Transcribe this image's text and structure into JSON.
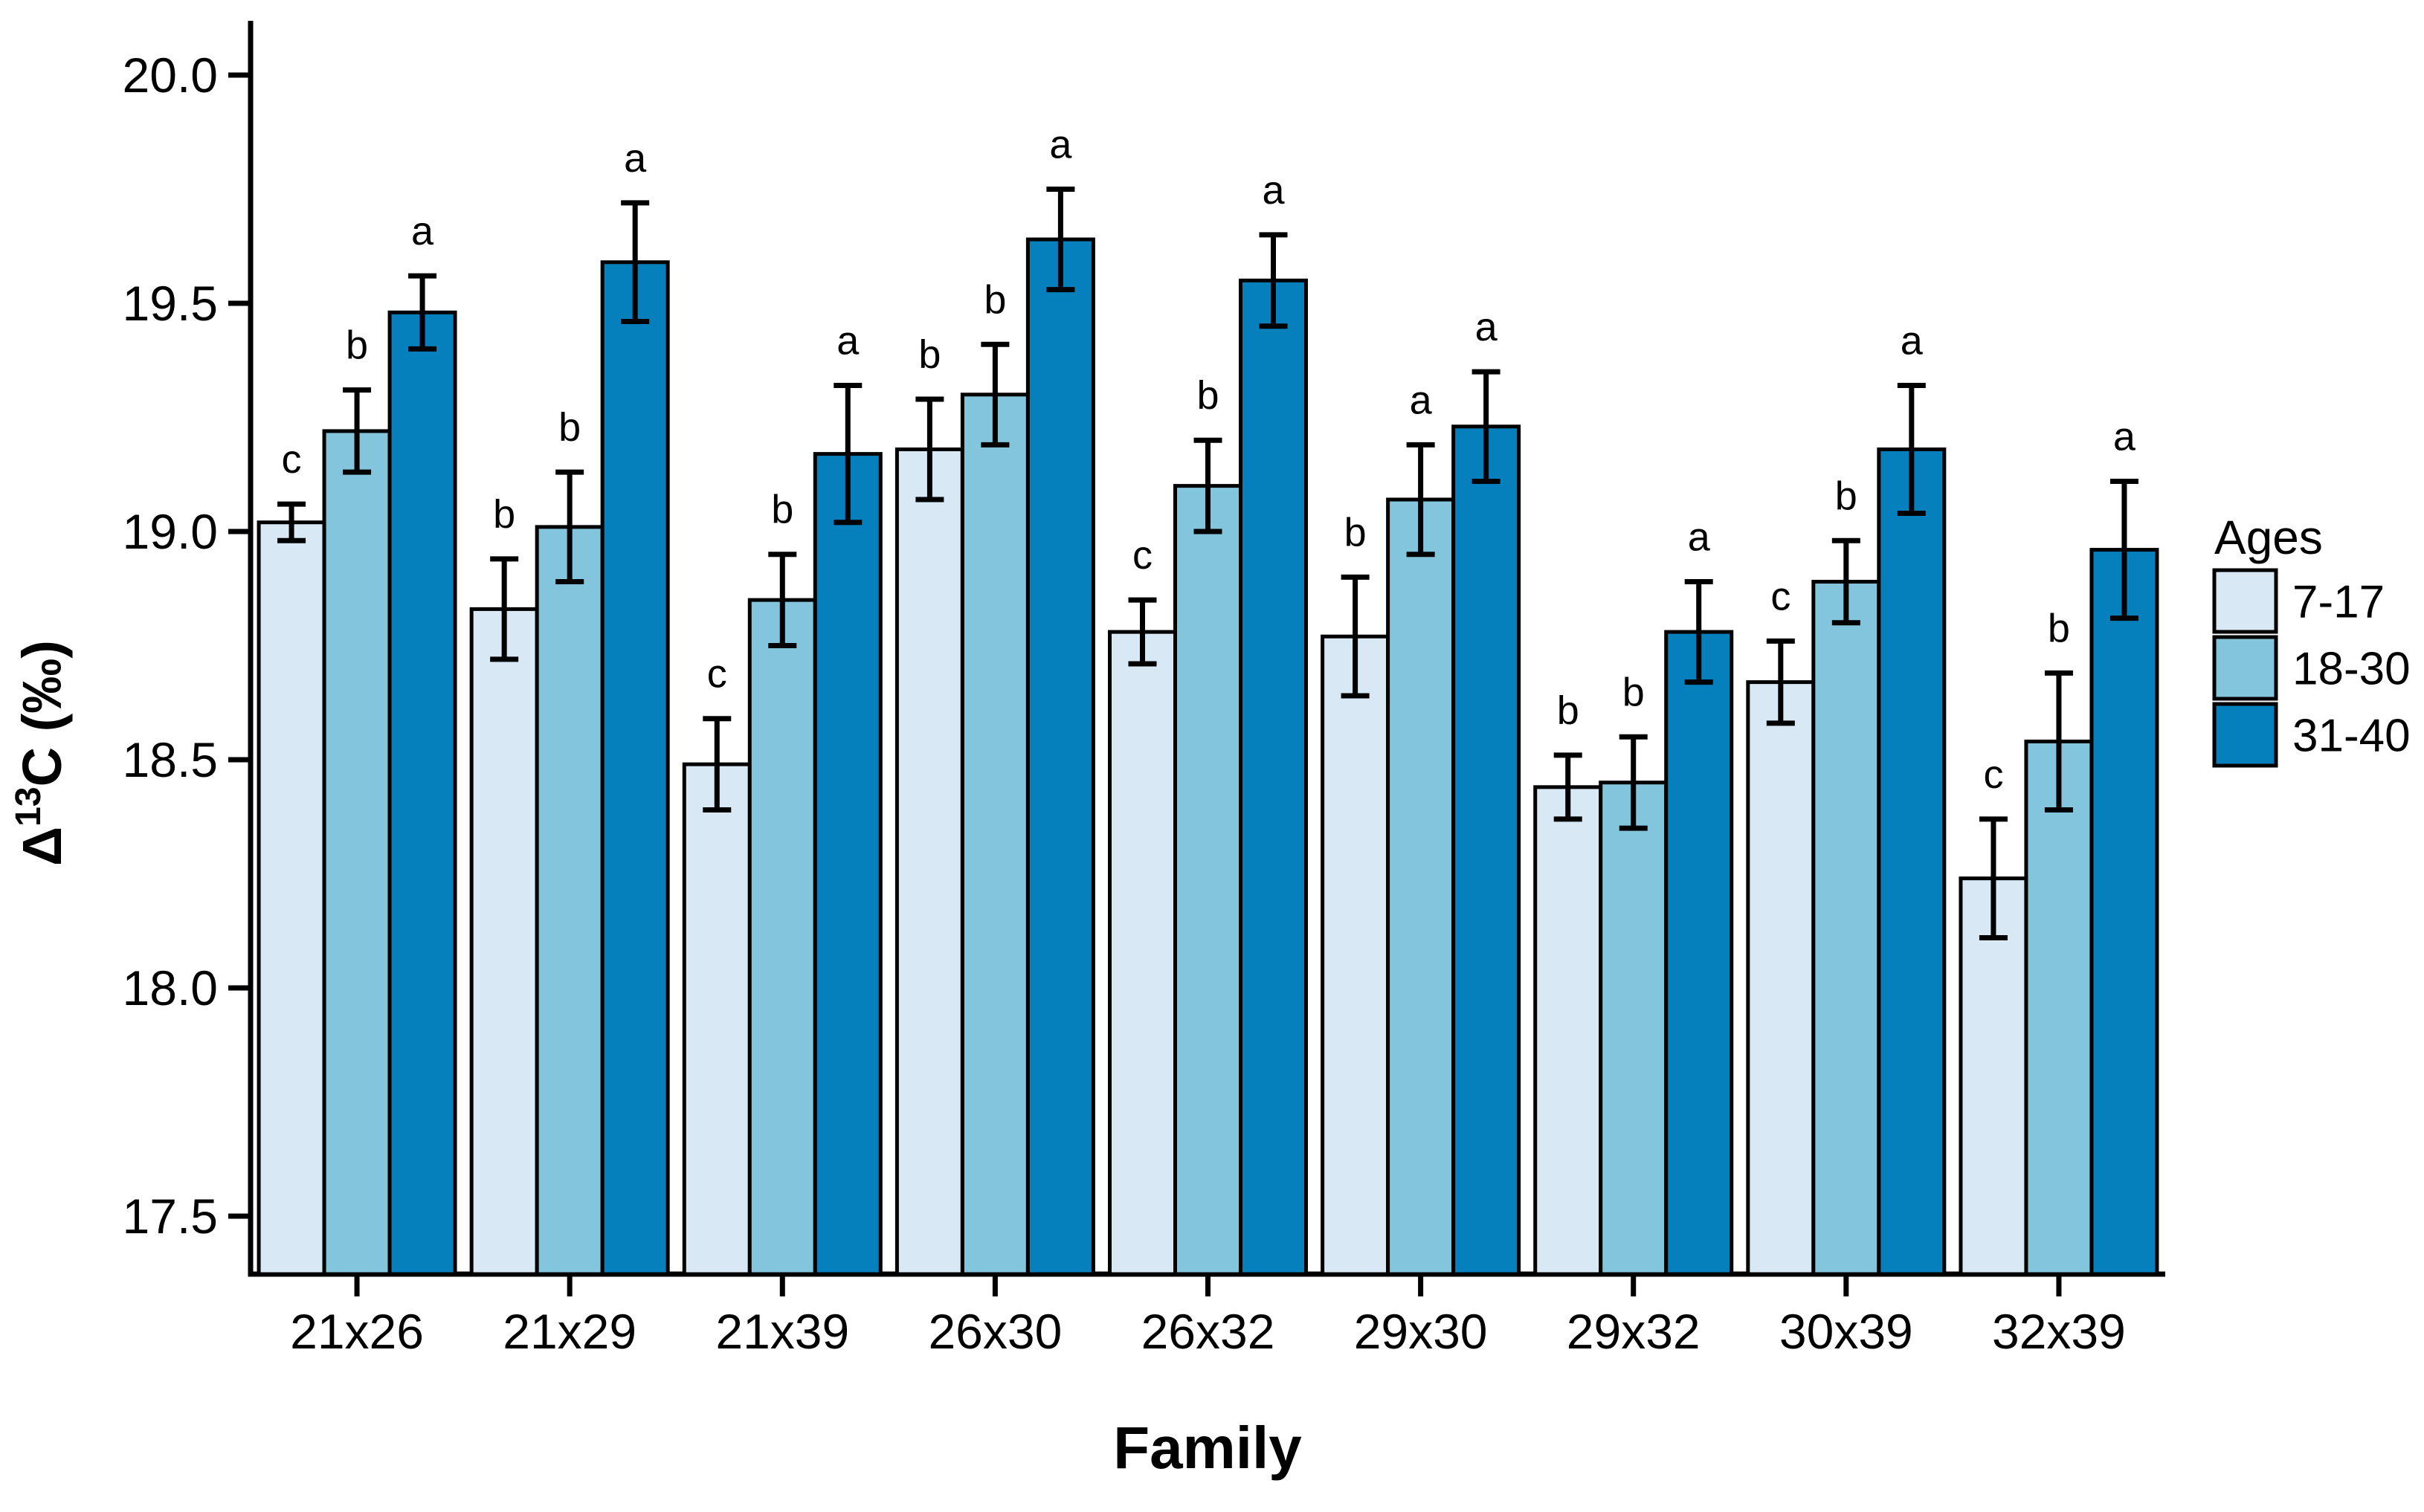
{
  "chart_data": {
    "type": "bar",
    "variant": "grouped-with-error-bars",
    "title": "",
    "xlabel": "Family",
    "ylabel": "Δ¹³C (‰)",
    "ylabel_parts": {
      "base_prefix": "Δ",
      "superscript": "13",
      "base_suffix": "C (‰)"
    },
    "categories": [
      "21x26",
      "21x29",
      "21x39",
      "26x30",
      "26x32",
      "29x30",
      "29x32",
      "30x39",
      "32x39"
    ],
    "series": [
      {
        "name": "7-17",
        "color": "#d9e8f5",
        "values": [
          19.02,
          18.83,
          18.49,
          19.18,
          18.78,
          18.77,
          18.44,
          18.67,
          18.24
        ],
        "errors": [
          0.04,
          0.11,
          0.1,
          0.11,
          0.07,
          0.13,
          0.07,
          0.09,
          0.13
        ],
        "letters": [
          "c",
          "b",
          "c",
          "b",
          "c",
          "b",
          "b",
          "c",
          "c"
        ]
      },
      {
        "name": "18-30",
        "color": "#84c5de",
        "values": [
          19.22,
          19.01,
          18.85,
          19.3,
          19.1,
          19.07,
          18.45,
          18.89,
          18.54
        ],
        "errors": [
          0.09,
          0.12,
          0.1,
          0.11,
          0.1,
          0.12,
          0.1,
          0.09,
          0.15
        ],
        "letters": [
          "b",
          "b",
          "b",
          "b",
          "b",
          "a",
          "b",
          "b",
          "b"
        ]
      },
      {
        "name": "31-40",
        "color": "#0680bc",
        "values": [
          19.48,
          19.59,
          19.17,
          19.64,
          19.55,
          19.23,
          18.78,
          19.18,
          18.96
        ],
        "errors": [
          0.08,
          0.13,
          0.15,
          0.11,
          0.1,
          0.12,
          0.11,
          0.14,
          0.15
        ],
        "letters": [
          "a",
          "a",
          "a",
          "a",
          "a",
          "a",
          "a",
          "a",
          "a"
        ]
      }
    ],
    "ylim": [
      17.37,
      20.12
    ],
    "yticks": [
      17.5,
      18.0,
      18.5,
      19.0,
      19.5,
      20.0
    ],
    "ytick_labels": [
      "17.5",
      "18.0",
      "18.5",
      "19.0",
      "19.5",
      "20.0"
    ],
    "grid": false,
    "legend": {
      "title": "Ages",
      "position": "right",
      "entries": [
        "7-17",
        "18-30",
        "31-40"
      ]
    },
    "bar_outline_color": "#000000",
    "error_bar_color": "#000000",
    "axis_color": "#000000"
  }
}
